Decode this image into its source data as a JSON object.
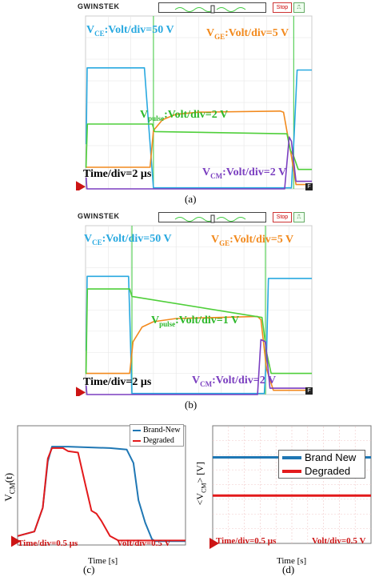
{
  "colors": {
    "vce": "#29a9e0",
    "vge": "#f28a1e",
    "vpulse": "#4fcf3a",
    "vcm": "#7b3fc0",
    "brand_new": "#1f77b4",
    "degraded": "#e31a1c",
    "marker": "#cc1414"
  },
  "scope_header": {
    "brand": "GWINSTEK",
    "stop": "Stop"
  },
  "panel_a": {
    "caption": "(a)",
    "vce_label": "V_CE:Volt/div=50 V",
    "vge_label": "V_GE:Volt/div=5 V",
    "vpulse_label": "V_pulse:Volt/div=2 V",
    "vcm_label": "V_CM:Volt/div=2 V",
    "time_label": "Time/div=2 μs",
    "f_mark": "F"
  },
  "panel_b": {
    "caption": "(b)",
    "vce_label": "V_CE:Volt/div=50 V",
    "vge_label": "V_GE:Volt/div=5 V",
    "vpulse_label": "V_pulse:Volt/div=1 V",
    "vcm_label": "V_CM:Volt/div=2 V",
    "time_label": "Time/div=2 μs",
    "f_mark": "F"
  },
  "panel_c": {
    "caption": "(c)",
    "ylabel": "V_CM(t)",
    "xlabel": "Time [s]",
    "time_label": "Time/div=0.5 μs",
    "volt_label": "Volt/div=0.5 V"
  },
  "panel_d": {
    "caption": "(d)",
    "ylabel": "<V_CM> [V]",
    "xlabel": "Time [s]",
    "time_label": "Time/div=0.5 μs",
    "volt_label": "Volt/div=0.5 V"
  },
  "chart_data": [
    {
      "type": "line",
      "panel": "a",
      "x_unit": "div",
      "xlim": [
        0,
        10
      ],
      "ylim": [
        0,
        8
      ],
      "series": [
        {
          "name": "V_CE",
          "x": [
            0,
            0.03,
            0.07,
            2.6,
            2.75,
            3.0,
            9.1,
            9.22,
            9.35,
            10
          ],
          "y": [
            2.1,
            2.1,
            5.6,
            5.6,
            3.5,
            0.05,
            0.05,
            2.5,
            5.5,
            5.5
          ]
        },
        {
          "name": "V_GE",
          "x": [
            0,
            2.85,
            3.0,
            3.4,
            4.0,
            5.0,
            8.6,
            8.75,
            9.1,
            9.3,
            10
          ],
          "y": [
            1.0,
            1.0,
            2.7,
            3.2,
            3.45,
            3.55,
            3.6,
            3.55,
            1.5,
            0.2,
            0.2
          ]
        },
        {
          "name": "V_pulse",
          "x": [
            0,
            0.02,
            0.08,
            2.95,
            3.05,
            8.9,
            9.05,
            9.2,
            9.4,
            10
          ],
          "y": [
            1.0,
            1.0,
            3.0,
            3.0,
            2.65,
            2.55,
            1.8,
            1.5,
            0.9,
            0.9
          ]
        },
        {
          "name": "V_CM",
          "x": [
            0,
            0.03,
            0.06,
            2.8,
            3.0,
            8.8,
            9.0,
            9.1,
            9.3,
            10
          ],
          "y": [
            0.5,
            0.5,
            0.0,
            0.0,
            0.0,
            0.0,
            2.4,
            2.2,
            0.35,
            0.35
          ]
        }
      ]
    },
    {
      "type": "line",
      "panel": "b",
      "x_unit": "div",
      "xlim": [
        0,
        10
      ],
      "ylim": [
        0,
        8
      ],
      "series": [
        {
          "name": "V_CE",
          "x": [
            0,
            0.03,
            0.07,
            1.9,
            1.97,
            2.05,
            7.9,
            8.0,
            8.08,
            10
          ],
          "y": [
            2.1,
            2.1,
            5.6,
            5.6,
            3.0,
            0.05,
            0.05,
            2.0,
            5.5,
            5.5
          ]
        },
        {
          "name": "V_GE",
          "x": [
            0,
            1.95,
            2.1,
            2.5,
            3.0,
            4.0,
            7.6,
            7.75,
            8.0,
            8.3,
            10
          ],
          "y": [
            1.0,
            1.0,
            2.5,
            3.2,
            3.45,
            3.6,
            3.7,
            3.55,
            1.2,
            0.2,
            0.2
          ]
        },
        {
          "name": "V_pulse",
          "x": [
            0,
            0.02,
            0.08,
            1.95,
            2.05,
            7.8,
            8.0,
            8.2,
            10
          ],
          "y": [
            1.0,
            1.0,
            5.0,
            5.0,
            4.65,
            3.65,
            2.0,
            1.0,
            1.0
          ]
        },
        {
          "name": "V_CM",
          "x": [
            0,
            0.03,
            0.06,
            7.6,
            7.75,
            7.95,
            8.15,
            10
          ],
          "y": [
            0.4,
            0.4,
            0.0,
            0.0,
            2.6,
            2.5,
            0.3,
            0.3
          ]
        }
      ]
    },
    {
      "type": "line",
      "panel": "c",
      "x_unit": "div",
      "xlim": [
        0,
        10
      ],
      "ylim": [
        0,
        8
      ],
      "series": [
        {
          "name": "Brand-New",
          "x": [
            0,
            1.0,
            1.5,
            1.8,
            2.05,
            3.0,
            5.5,
            6.5,
            6.9,
            7.2,
            7.6,
            8.0,
            8.2,
            10
          ],
          "y": [
            0.6,
            0.9,
            2.5,
            5.6,
            6.6,
            6.6,
            6.5,
            6.4,
            5.5,
            3.0,
            1.5,
            0.4,
            0.25,
            0.25
          ]
        },
        {
          "name": "Degraded",
          "x": [
            0,
            1.0,
            1.5,
            1.8,
            2.05,
            2.7,
            3.0,
            3.6,
            4.05,
            4.4,
            4.7,
            5.0,
            5.5,
            6.0,
            10
          ],
          "y": [
            0.6,
            0.9,
            2.5,
            5.8,
            6.5,
            6.5,
            6.3,
            6.2,
            4.0,
            2.3,
            2.1,
            1.6,
            0.6,
            0.3,
            0.3
          ]
        }
      ]
    },
    {
      "type": "line",
      "panel": "d",
      "x_unit": "div",
      "xlim": [
        0,
        10
      ],
      "ylim": [
        0,
        8
      ],
      "series": [
        {
          "name": "Brand New",
          "x": [
            0,
            10
          ],
          "y": [
            5.85,
            5.85
          ]
        },
        {
          "name": "Degraded",
          "x": [
            0,
            10
          ],
          "y": [
            3.25,
            3.25
          ]
        }
      ]
    }
  ]
}
